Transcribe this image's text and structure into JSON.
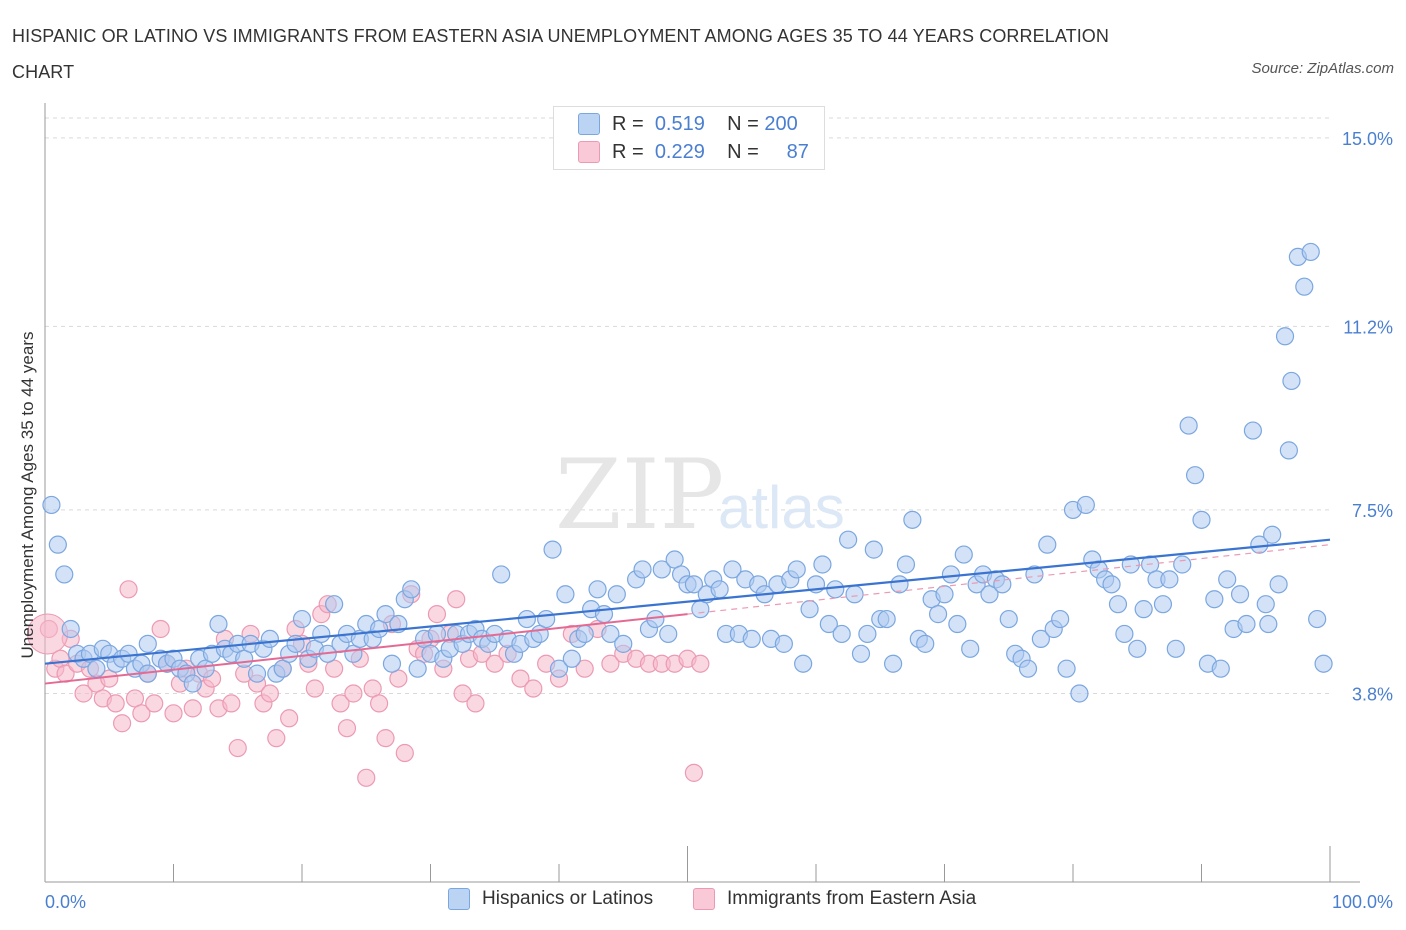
{
  "title": "HISPANIC OR LATINO VS IMMIGRANTS FROM EASTERN ASIA UNEMPLOYMENT AMONG AGES 35 TO 44 YEARS CORRELATION CHART",
  "source": "Source: ZipAtlas.com",
  "watermark": {
    "zip": "ZIP",
    "atlas": "atlas"
  },
  "legend": {
    "rows": [
      {
        "r_label": "R =",
        "r_value": "0.519",
        "n_label": "N =",
        "n_value": "200"
      },
      {
        "r_label": "R =",
        "r_value": "0.229",
        "n_label": "N =",
        "n_value": "87"
      }
    ]
  },
  "bottom_legend": [
    "Hispanics or Latinos",
    "Immigrants from Eastern Asia"
  ],
  "colors": {
    "blue_fill": "#aecbf0",
    "blue_stroke": "#7ba7e0",
    "blue_line": "#3a74d0",
    "pink_fill": "#f6b8cb",
    "pink_stroke": "#ec9ab4",
    "pink_line": "#e46a93",
    "axis_text": "#4a7fd0",
    "grid": "#d9d9d9"
  },
  "chart_data": {
    "type": "scatter",
    "ylabel": "Unemployment Among Ages 35 to 44 years",
    "x_tick_labels": [
      "0.0%",
      "100.0%"
    ],
    "y_tick_labels": [
      "15.0%",
      "11.2%",
      "7.5%",
      "3.8%"
    ],
    "y_ticks": [
      15.0,
      11.2,
      7.5,
      3.8
    ],
    "xlim": [
      0,
      100
    ],
    "ylim": [
      0,
      15.4
    ],
    "grid": true,
    "legend_position": "top-center",
    "series": [
      {
        "name": "Hispanics or Latinos",
        "r": 0.519,
        "n": 200,
        "trend": {
          "x": [
            0,
            100
          ],
          "y": [
            4.4,
            6.9
          ]
        },
        "points": [
          [
            0.5,
            7.6
          ],
          [
            1,
            6.8
          ],
          [
            1.5,
            6.2
          ],
          [
            2,
            5.1
          ],
          [
            2.5,
            4.6
          ],
          [
            3,
            4.5
          ],
          [
            3.5,
            4.6
          ],
          [
            4,
            4.3
          ],
          [
            4.5,
            4.7
          ],
          [
            5,
            4.6
          ],
          [
            5.5,
            4.4
          ],
          [
            6,
            4.5
          ],
          [
            6.5,
            4.6
          ],
          [
            7,
            4.3
          ],
          [
            7.5,
            4.4
          ],
          [
            8,
            4.2
          ],
          [
            8,
            4.8
          ],
          [
            9,
            4.5
          ],
          [
            9.5,
            4.4
          ],
          [
            10,
            4.5
          ],
          [
            10.5,
            4.3
          ],
          [
            11,
            4.2
          ],
          [
            11.5,
            4.0
          ],
          [
            12,
            4.5
          ],
          [
            12.5,
            4.3
          ],
          [
            13,
            4.6
          ],
          [
            13.5,
            5.2
          ],
          [
            14,
            4.7
          ],
          [
            14.5,
            4.6
          ],
          [
            15,
            4.8
          ],
          [
            15.5,
            4.5
          ],
          [
            16,
            4.8
          ],
          [
            16.5,
            4.2
          ],
          [
            17,
            4.7
          ],
          [
            17.5,
            4.9
          ],
          [
            18,
            4.2
          ],
          [
            18.5,
            4.3
          ],
          [
            19,
            4.6
          ],
          [
            19.5,
            4.8
          ],
          [
            20,
            5.3
          ],
          [
            20.5,
            4.5
          ],
          [
            21,
            4.7
          ],
          [
            21.5,
            5.0
          ],
          [
            22,
            4.6
          ],
          [
            22.5,
            5.6
          ],
          [
            23,
            4.8
          ],
          [
            23.5,
            5.0
          ],
          [
            24,
            4.6
          ],
          [
            24.5,
            4.9
          ],
          [
            25,
            5.2
          ],
          [
            25.5,
            4.9
          ],
          [
            26,
            5.1
          ],
          [
            26.5,
            5.4
          ],
          [
            27,
            4.4
          ],
          [
            27.5,
            5.2
          ],
          [
            28,
            5.7
          ],
          [
            28.5,
            5.9
          ],
          [
            29,
            4.3
          ],
          [
            29.5,
            4.9
          ],
          [
            30,
            4.6
          ],
          [
            30.5,
            5.0
          ],
          [
            31,
            4.5
          ],
          [
            31.5,
            4.7
          ],
          [
            32,
            5.0
          ],
          [
            32.5,
            4.8
          ],
          [
            33,
            5.0
          ],
          [
            33.5,
            5.1
          ],
          [
            34,
            4.9
          ],
          [
            34.5,
            4.8
          ],
          [
            35,
            5.0
          ],
          [
            35.5,
            6.2
          ],
          [
            36,
            4.9
          ],
          [
            36.5,
            4.6
          ],
          [
            37,
            4.8
          ],
          [
            37.5,
            5.3
          ],
          [
            38,
            4.9
          ],
          [
            38.5,
            5.0
          ],
          [
            39,
            5.3
          ],
          [
            39.5,
            6.7
          ],
          [
            40,
            4.3
          ],
          [
            40.5,
            5.8
          ],
          [
            41,
            4.5
          ],
          [
            41.5,
            4.9
          ],
          [
            42,
            5.0
          ],
          [
            42.5,
            5.5
          ],
          [
            43,
            5.9
          ],
          [
            43.5,
            5.4
          ],
          [
            44,
            5.0
          ],
          [
            44.5,
            5.8
          ],
          [
            45,
            4.8
          ],
          [
            46,
            6.1
          ],
          [
            46.5,
            6.3
          ],
          [
            47,
            5.1
          ],
          [
            47.5,
            5.3
          ],
          [
            48,
            6.3
          ],
          [
            48.5,
            5.0
          ],
          [
            49,
            6.5
          ],
          [
            49.5,
            6.2
          ],
          [
            50,
            6.0
          ],
          [
            50.5,
            6.0
          ],
          [
            51,
            5.5
          ],
          [
            51.5,
            5.8
          ],
          [
            52,
            6.1
          ],
          [
            52.5,
            5.9
          ],
          [
            53,
            5.0
          ],
          [
            53.5,
            6.3
          ],
          [
            54,
            5.0
          ],
          [
            54.5,
            6.1
          ],
          [
            55,
            4.9
          ],
          [
            55.5,
            6.0
          ],
          [
            56,
            5.8
          ],
          [
            56.5,
            4.9
          ],
          [
            57,
            6.0
          ],
          [
            57.5,
            4.8
          ],
          [
            58,
            6.1
          ],
          [
            58.5,
            6.3
          ],
          [
            59,
            4.4
          ],
          [
            59.5,
            5.5
          ],
          [
            60,
            6.0
          ],
          [
            60.5,
            6.4
          ],
          [
            61,
            5.2
          ],
          [
            61.5,
            5.9
          ],
          [
            62,
            5.0
          ],
          [
            62.5,
            6.9
          ],
          [
            63,
            5.8
          ],
          [
            63.5,
            4.6
          ],
          [
            64,
            5.0
          ],
          [
            64.5,
            6.7
          ],
          [
            65,
            5.3
          ],
          [
            65.5,
            5.3
          ],
          [
            66,
            4.4
          ],
          [
            66.5,
            6.0
          ],
          [
            67,
            6.4
          ],
          [
            67.5,
            7.3
          ],
          [
            68,
            4.9
          ],
          [
            68.5,
            4.8
          ],
          [
            69,
            5.7
          ],
          [
            69.5,
            5.4
          ],
          [
            70,
            5.8
          ],
          [
            70.5,
            6.2
          ],
          [
            71,
            5.2
          ],
          [
            71.5,
            6.6
          ],
          [
            72,
            4.7
          ],
          [
            72.5,
            6.0
          ],
          [
            73,
            6.2
          ],
          [
            73.5,
            5.8
          ],
          [
            74,
            6.1
          ],
          [
            74.5,
            6.0
          ],
          [
            75,
            5.3
          ],
          [
            75.5,
            4.6
          ],
          [
            76,
            4.5
          ],
          [
            76.5,
            4.3
          ],
          [
            77,
            6.2
          ],
          [
            77.5,
            4.9
          ],
          [
            78,
            6.8
          ],
          [
            78.5,
            5.1
          ],
          [
            79,
            5.3
          ],
          [
            79.5,
            4.3
          ],
          [
            80,
            7.5
          ],
          [
            80.5,
            3.8
          ],
          [
            81,
            7.6
          ],
          [
            81.5,
            6.5
          ],
          [
            82,
            6.3
          ],
          [
            82.5,
            6.1
          ],
          [
            83,
            6.0
          ],
          [
            83.5,
            5.6
          ],
          [
            84,
            5.0
          ],
          [
            84.5,
            6.4
          ],
          [
            85,
            4.7
          ],
          [
            85.5,
            5.5
          ],
          [
            86,
            6.4
          ],
          [
            86.5,
            6.1
          ],
          [
            87,
            5.6
          ],
          [
            87.5,
            6.1
          ],
          [
            88,
            4.7
          ],
          [
            88.5,
            6.4
          ],
          [
            89,
            9.2
          ],
          [
            89.5,
            8.2
          ],
          [
            90,
            7.3
          ],
          [
            90.5,
            4.4
          ],
          [
            91,
            5.7
          ],
          [
            91.5,
            4.3
          ],
          [
            92,
            6.1
          ],
          [
            92.5,
            5.1
          ],
          [
            93,
            5.8
          ],
          [
            93.5,
            5.2
          ],
          [
            94,
            9.1
          ],
          [
            94.5,
            6.8
          ],
          [
            95,
            5.6
          ],
          [
            95.5,
            7.0
          ],
          [
            96,
            6.0
          ],
          [
            96.5,
            11.0
          ],
          [
            97,
            10.1
          ],
          [
            97.5,
            12.6
          ],
          [
            98,
            12.0
          ],
          [
            98.5,
            12.7
          ],
          [
            99,
            5.3
          ],
          [
            99.5,
            4.4
          ],
          [
            96.8,
            8.7
          ],
          [
            95.2,
            5.2
          ]
        ]
      },
      {
        "name": "Immigrants from Eastern Asia",
        "r": 0.229,
        "n": 87,
        "trend": {
          "x": [
            0,
            50
          ],
          "y": [
            4.0,
            5.4
          ]
        },
        "trend_ext": {
          "x": [
            50,
            100
          ],
          "y": [
            5.4,
            6.8
          ]
        },
        "points": [
          [
            0.3,
            5.1
          ],
          [
            0.8,
            4.3
          ],
          [
            1.2,
            4.5
          ],
          [
            1.6,
            4.2
          ],
          [
            2,
            4.9
          ],
          [
            2.5,
            4.4
          ],
          [
            3,
            3.8
          ],
          [
            3.5,
            4.3
          ],
          [
            4,
            4.0
          ],
          [
            4.5,
            3.7
          ],
          [
            5,
            4.1
          ],
          [
            5.5,
            3.6
          ],
          [
            6,
            3.2
          ],
          [
            6.5,
            5.9
          ],
          [
            7,
            3.7
          ],
          [
            7.5,
            3.4
          ],
          [
            8,
            4.2
          ],
          [
            8.5,
            3.6
          ],
          [
            9,
            5.1
          ],
          [
            9.5,
            4.4
          ],
          [
            10,
            3.4
          ],
          [
            10.5,
            4.0
          ],
          [
            11,
            4.3
          ],
          [
            11.5,
            3.5
          ],
          [
            12,
            4.2
          ],
          [
            12.5,
            3.9
          ],
          [
            13,
            4.1
          ],
          [
            13.5,
            3.5
          ],
          [
            14,
            4.9
          ],
          [
            14.5,
            3.6
          ],
          [
            15,
            2.7
          ],
          [
            15.5,
            4.2
          ],
          [
            16,
            5.0
          ],
          [
            16.5,
            4.0
          ],
          [
            17,
            3.6
          ],
          [
            17.5,
            3.8
          ],
          [
            18,
            2.9
          ],
          [
            18.5,
            4.3
          ],
          [
            19,
            3.3
          ],
          [
            19.5,
            5.1
          ],
          [
            20,
            4.8
          ],
          [
            20.5,
            4.4
          ],
          [
            21,
            3.9
          ],
          [
            21.5,
            5.4
          ],
          [
            22,
            5.6
          ],
          [
            22.5,
            4.3
          ],
          [
            23,
            3.6
          ],
          [
            23.5,
            3.1
          ],
          [
            24,
            3.8
          ],
          [
            24.5,
            4.5
          ],
          [
            25,
            2.1
          ],
          [
            25.5,
            3.9
          ],
          [
            26,
            3.6
          ],
          [
            26.5,
            2.9
          ],
          [
            27,
            5.2
          ],
          [
            27.5,
            4.1
          ],
          [
            28,
            2.6
          ],
          [
            28.5,
            5.8
          ],
          [
            29,
            4.7
          ],
          [
            29.5,
            4.6
          ],
          [
            30,
            4.9
          ],
          [
            30.5,
            5.4
          ],
          [
            31,
            4.3
          ],
          [
            31.5,
            5.0
          ],
          [
            32,
            5.7
          ],
          [
            32.5,
            3.8
          ],
          [
            33,
            4.5
          ],
          [
            33.5,
            3.6
          ],
          [
            34,
            4.6
          ],
          [
            35,
            4.4
          ],
          [
            36,
            4.6
          ],
          [
            37,
            4.1
          ],
          [
            38,
            3.9
          ],
          [
            39,
            4.4
          ],
          [
            40,
            4.1
          ],
          [
            41,
            5.0
          ],
          [
            42,
            4.3
          ],
          [
            43,
            5.1
          ],
          [
            44,
            4.4
          ],
          [
            45,
            4.6
          ],
          [
            46,
            4.5
          ],
          [
            47,
            4.4
          ],
          [
            48,
            4.4
          ],
          [
            49,
            4.4
          ],
          [
            50,
            4.5
          ],
          [
            50.5,
            2.2
          ],
          [
            51,
            4.4
          ]
        ]
      }
    ]
  }
}
